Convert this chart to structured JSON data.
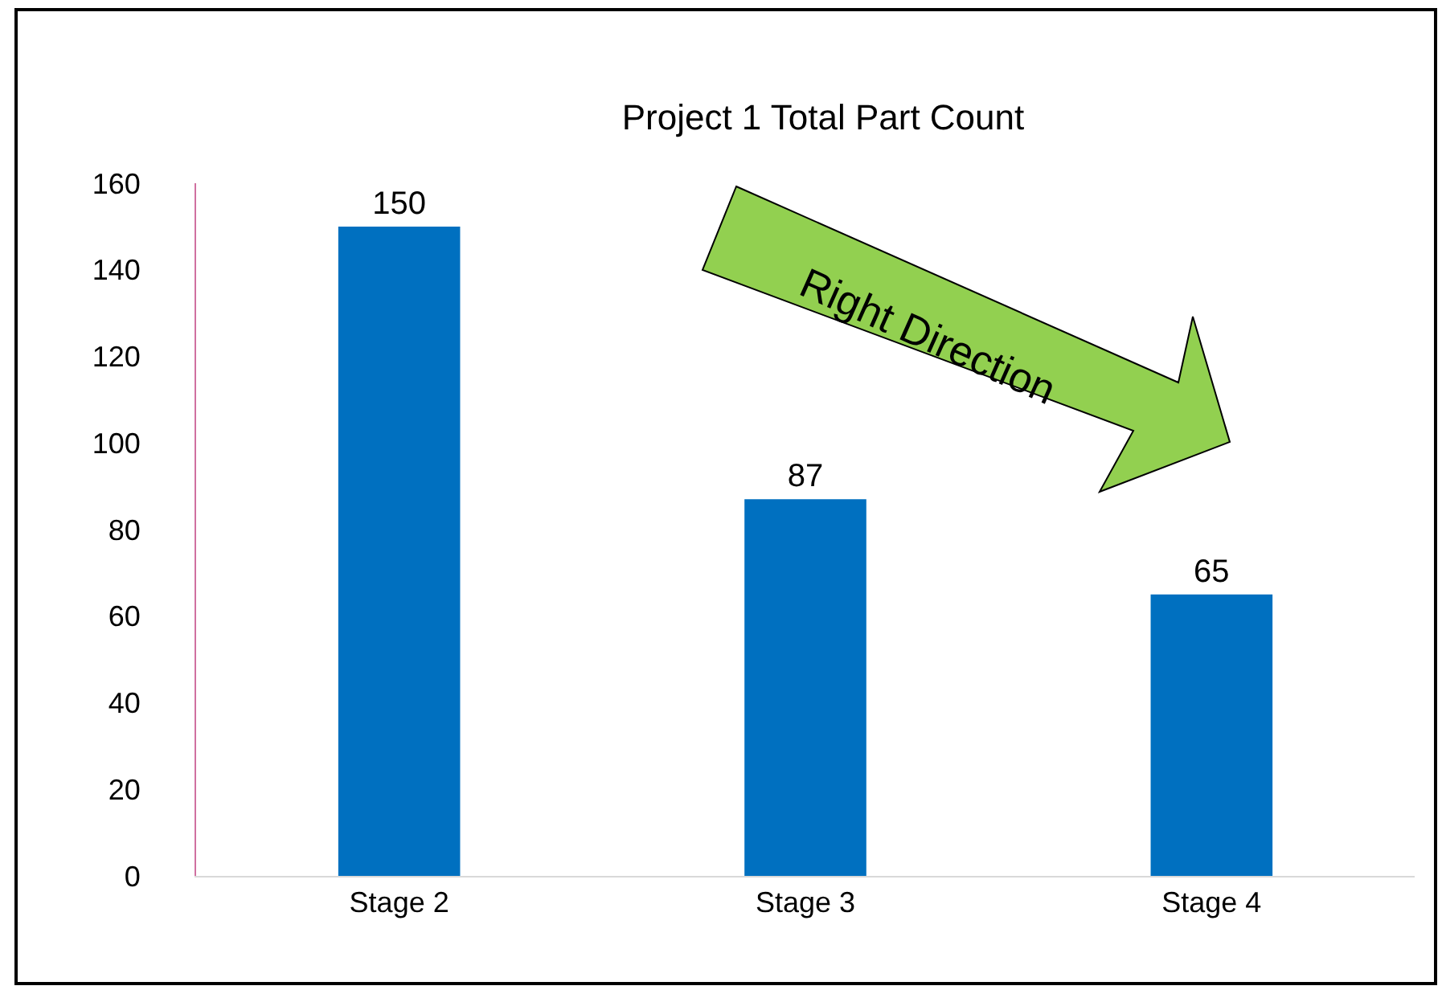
{
  "chart_data": {
    "type": "bar",
    "title": "Project 1 Total Part Count",
    "categories": [
      "Stage 2",
      "Stage 3",
      "Stage 4"
    ],
    "values": [
      150,
      87,
      65
    ],
    "color": "#0070c0",
    "ylim": [
      0,
      160
    ],
    "yticks": [
      0,
      20,
      40,
      60,
      80,
      100,
      120,
      140,
      160
    ],
    "data_labels": true,
    "annotations": [
      "Right Direction"
    ]
  }
}
